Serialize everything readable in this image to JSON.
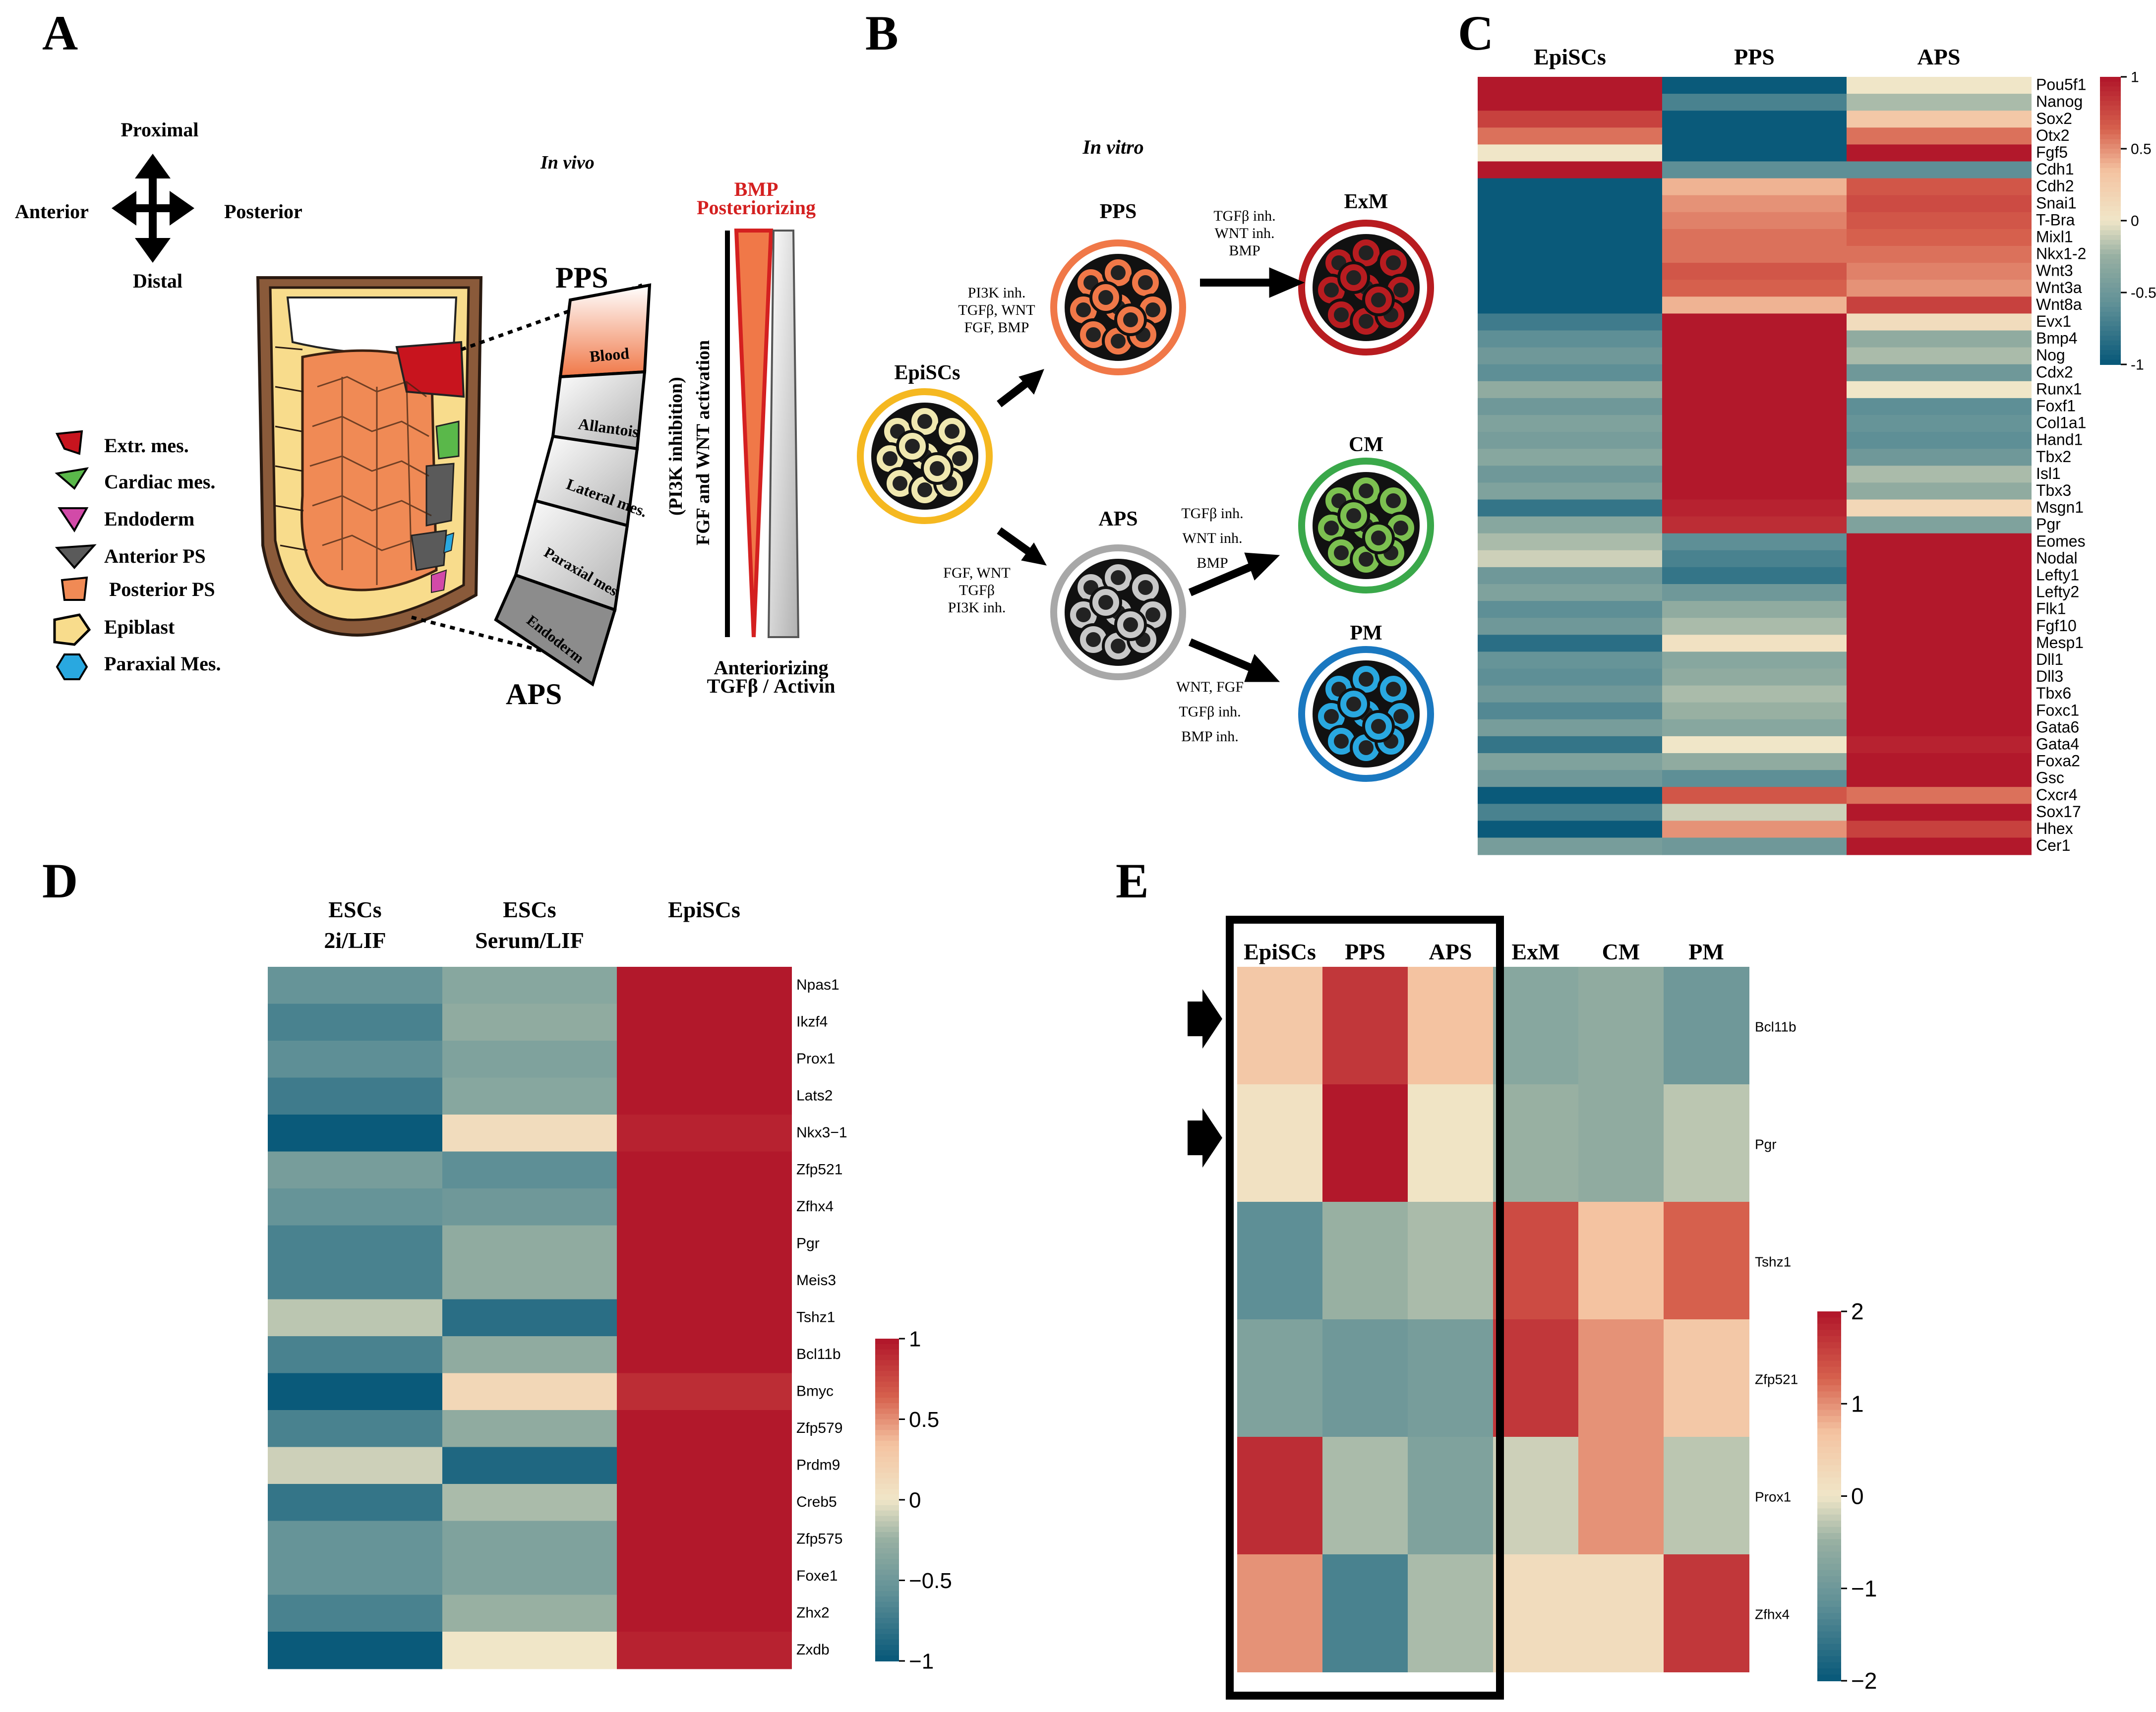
{
  "panel_labels": [
    "A",
    "B",
    "C",
    "D",
    "E"
  ],
  "colors": {
    "red": "#b2182b",
    "redmid": "#d6604d",
    "peach": "#f4c3a1",
    "cream": "#f0e6c8",
    "sage": "#98b0a2",
    "teal": "#5e8f96",
    "blue": "#0a5a7a",
    "extr_mes": "#c8141e",
    "cardiac": "#5ab84a",
    "endoderm": "#d24aa8",
    "anterior_ps": "#5a5a5a",
    "posterior_ps": "#f08a55",
    "epiblast": "#f8dc8c",
    "paraxial": "#29a8e0",
    "pps_ring": "#f07848",
    "exm_ring": "#b81c20",
    "cm_ring": "#3aa84a",
    "pm_ring": "#1a78c0",
    "epi_ring": "#f5b820",
    "aps_ring": "#a8a8a8"
  },
  "panel_a": {
    "axes": {
      "proximal": "Proximal",
      "distal": "Distal",
      "anterior": "Anterior",
      "posterior": "Posterior"
    },
    "title": "In vivo",
    "pps": "PPS",
    "aps": "APS",
    "regions": [
      "Blood",
      "Allantois",
      "Lateral mes.",
      "Paraxial mes.",
      "Endoderm"
    ],
    "legend": [
      "Extr. mes.",
      "Cardiac mes.",
      "Endoderm",
      "Anterior PS",
      "Posterior PS",
      "Epiblast",
      "Paraxial Mes."
    ],
    "gradient_top_1": "BMP",
    "gradient_top_2": "Posteriorizing",
    "gradient_side": "FGF and WNT activation",
    "gradient_side_2": "(PI3K inhibition)",
    "gradient_bottom_1": "Anteriorizing",
    "gradient_bottom_2": "TGFβ / Activin"
  },
  "panel_b": {
    "title": "In vitro",
    "epiblast": "EpiSCs",
    "pps": "PPS",
    "aps": "APS",
    "exm": "ExM",
    "cm": "CM",
    "pm": "PM",
    "cond_epi_pps": [
      "PI3K inh.",
      "TGFβ, WNT",
      "FGF, BMP"
    ],
    "cond_epi_aps": [
      "FGF, WNT",
      "TGFβ",
      "PI3K inh."
    ],
    "cond_pps_exm": [
      "TGFβ inh.",
      "WNT inh.",
      "BMP"
    ],
    "cond_aps_cm": [
      "TGFβ inh.",
      "WNT inh.",
      "BMP"
    ],
    "cond_aps_pm": [
      "WNT, FGF",
      "TGFβ inh.",
      "BMP inh."
    ]
  },
  "panel_c": {
    "columns": [
      "EpiSCs",
      "PPS",
      "APS"
    ],
    "genes": [
      "Pou5f1",
      "Nanog",
      "Sox2",
      "Otx2",
      "Fgf5",
      "Cdh1",
      "Cdh2",
      "Snai1",
      "T-Bra",
      "Mixl1",
      "Nkx1-2",
      "Wnt3",
      "Wnt3a",
      "Wnt8a",
      "Evx1",
      "Bmp4",
      "Nog",
      "Cdx2",
      "Runx1",
      "Foxf1",
      "Col1a1",
      "Hand1",
      "Tbx2",
      "Isl1",
      "Tbx3",
      "Msgn1",
      "Pgr",
      "Eomes",
      "Nodal",
      "Lefty1",
      "Lefty2",
      "Flk1",
      "Fgf10",
      "Mesp1",
      "Dll1",
      "Dll3",
      "Tbx6",
      "Foxc1",
      "Gata6",
      "Gata4",
      "Foxa2",
      "Gsc",
      "Cxcr4",
      "Sox17",
      "Hhex",
      "Cer1"
    ],
    "values": [
      [
        1,
        -1,
        0
      ],
      [
        1,
        -0.7,
        -0.2
      ],
      [
        0.8,
        -1,
        0.3
      ],
      [
        0.6,
        -1,
        0.6
      ],
      [
        0,
        -1,
        1
      ],
      [
        1,
        -0.6,
        -0.6
      ],
      [
        -1,
        0.4,
        0.7
      ],
      [
        -1,
        0.5,
        0.75
      ],
      [
        -1,
        0.55,
        0.7
      ],
      [
        -1,
        0.6,
        0.65
      ],
      [
        -1,
        0.6,
        0.6
      ],
      [
        -1,
        0.7,
        0.55
      ],
      [
        -1,
        0.65,
        0.5
      ],
      [
        -1,
        0.4,
        0.8
      ],
      [
        -0.75,
        1,
        0.1
      ],
      [
        -0.6,
        1,
        -0.3
      ],
      [
        -0.5,
        1,
        -0.2
      ],
      [
        -0.6,
        1,
        -0.5
      ],
      [
        -0.3,
        1,
        0
      ],
      [
        -0.5,
        1,
        -0.6
      ],
      [
        -0.4,
        1,
        -0.55
      ],
      [
        -0.45,
        1,
        -0.6
      ],
      [
        -0.35,
        1,
        -0.5
      ],
      [
        -0.5,
        1,
        -0.2
      ],
      [
        -0.4,
        1,
        -0.3
      ],
      [
        -0.8,
        0.95,
        0.15
      ],
      [
        -0.35,
        0.9,
        -0.4
      ],
      [
        -0.2,
        -0.6,
        1
      ],
      [
        -0.1,
        -0.7,
        1
      ],
      [
        -0.5,
        -0.8,
        1
      ],
      [
        -0.4,
        -0.5,
        1
      ],
      [
        -0.6,
        -0.3,
        1
      ],
      [
        -0.5,
        -0.2,
        1
      ],
      [
        -0.85,
        0.05,
        1
      ],
      [
        -0.55,
        -0.35,
        1
      ],
      [
        -0.6,
        -0.3,
        1
      ],
      [
        -0.5,
        -0.2,
        1
      ],
      [
        -0.65,
        -0.25,
        1
      ],
      [
        -0.45,
        -0.35,
        1
      ],
      [
        -0.8,
        0,
        0.95
      ],
      [
        -0.4,
        -0.3,
        1
      ],
      [
        -0.5,
        -0.6,
        1
      ],
      [
        -1,
        0.7,
        0.6
      ],
      [
        -0.7,
        -0.1,
        1
      ],
      [
        -1,
        0.5,
        0.8
      ],
      [
        -0.45,
        -0.5,
        1
      ]
    ],
    "scale_ticks": [
      "1",
      "0.5",
      "0",
      "-0.5",
      "-1"
    ]
  },
  "panel_d": {
    "columns": [
      [
        "ESCs",
        "2i/LIF"
      ],
      [
        "ESCs",
        "Serum/LIF"
      ],
      [
        "EpiSCs",
        ""
      ]
    ],
    "genes": [
      "Npas1",
      "Ikzf4",
      "Prox1",
      "Lats2",
      "Nkx3−1",
      "Zfp521",
      "Zfhx4",
      "Pgr",
      "Meis3",
      "Tshz1",
      "Bcl11b",
      "Bmyc",
      "Zfp579",
      "Prdm9",
      "Creb5",
      "Zfp575",
      "Foxe1",
      "Zhx2",
      "Zxdb"
    ],
    "values": [
      [
        -0.55,
        -0.35,
        1
      ],
      [
        -0.7,
        -0.3,
        1
      ],
      [
        -0.6,
        -0.4,
        1
      ],
      [
        -0.75,
        -0.35,
        1
      ],
      [
        -1,
        0.1,
        0.95
      ],
      [
        -0.45,
        -0.6,
        1
      ],
      [
        -0.55,
        -0.5,
        1
      ],
      [
        -0.7,
        -0.3,
        1
      ],
      [
        -0.7,
        -0.3,
        1
      ],
      [
        -0.15,
        -0.85,
        1
      ],
      [
        -0.7,
        -0.3,
        1
      ],
      [
        -1,
        0.15,
        0.9
      ],
      [
        -0.7,
        -0.3,
        1
      ],
      [
        -0.1,
        -0.9,
        1
      ],
      [
        -0.8,
        -0.2,
        1
      ],
      [
        -0.55,
        -0.4,
        1
      ],
      [
        -0.55,
        -0.4,
        1
      ],
      [
        -0.7,
        -0.25,
        1
      ],
      [
        -1,
        0,
        0.95
      ]
    ],
    "scale_ticks": [
      "1",
      "0.5",
      "0",
      "−0.5",
      "−1"
    ]
  },
  "panel_e": {
    "columns": [
      "EpiSCs",
      "PPS",
      "APS",
      "ExM",
      "CM",
      "PM"
    ],
    "genes": [
      "Bcl11b",
      "Pgr",
      "Tshz1",
      "Zfp521",
      "Prox1",
      "Zfhx4"
    ],
    "values": [
      [
        0.6,
        1.7,
        0.7,
        -0.7,
        -0.6,
        -1
      ],
      [
        0.1,
        2,
        0.05,
        -0.5,
        -0.6,
        -0.3
      ],
      [
        -1.2,
        -0.5,
        -0.4,
        1.5,
        0.7,
        1.3
      ],
      [
        -0.8,
        -1,
        -0.9,
        1.7,
        1,
        0.6
      ],
      [
        1.8,
        -0.4,
        -0.8,
        -0.2,
        1,
        -0.3
      ],
      [
        1,
        -1.4,
        -0.4,
        0.2,
        0.2,
        1.7
      ]
    ],
    "scale_ticks": [
      "2",
      "1",
      "0",
      "−1",
      "−2"
    ]
  }
}
